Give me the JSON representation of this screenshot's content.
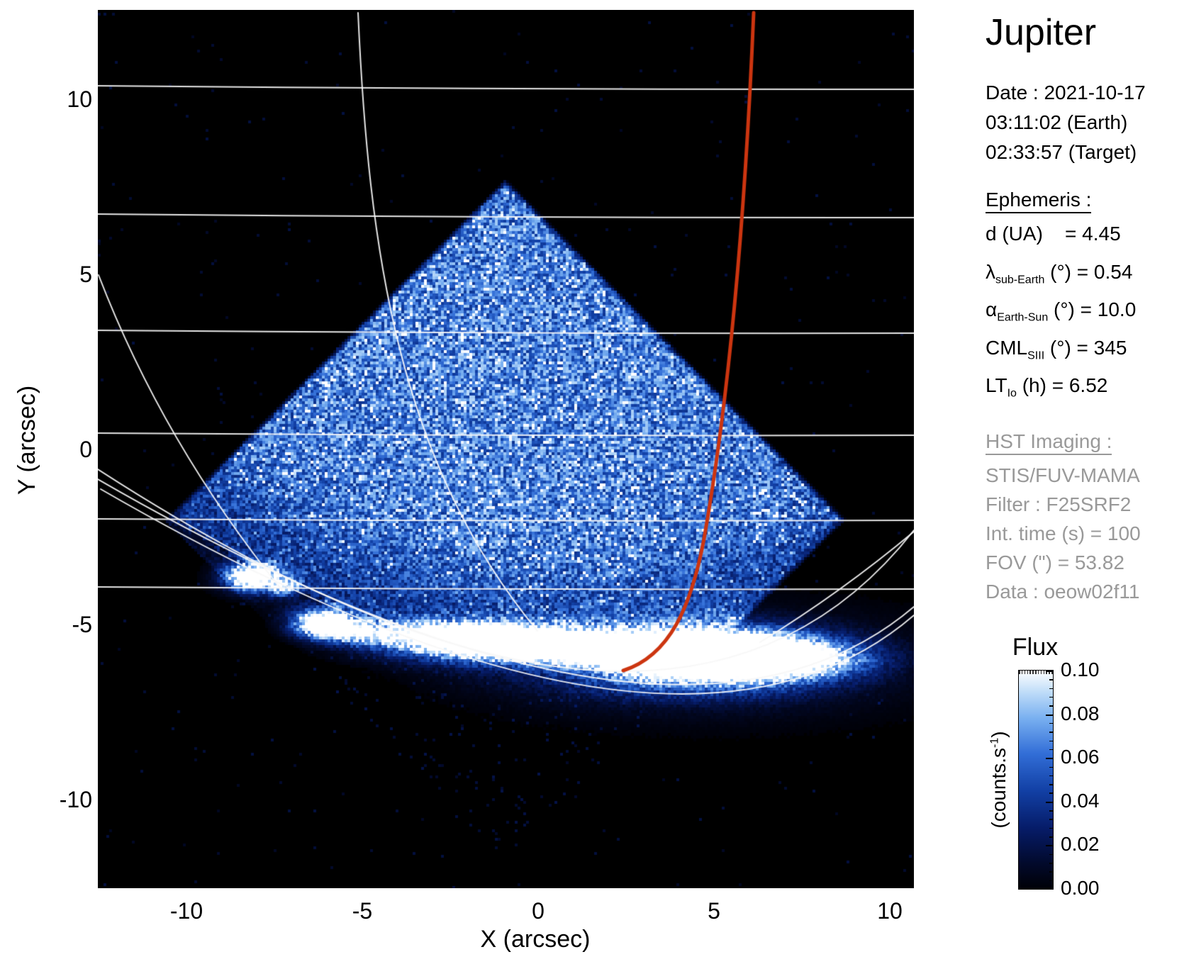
{
  "panel": {
    "title": "Jupiter",
    "date_lines": [
      "Date : 2021-10-17",
      "03:11:02 (Earth)",
      "02:33:57 (Target)"
    ],
    "ephemeris": {
      "heading": "Ephemeris : ",
      "rows": [
        {
          "pre": "d (UA)",
          "sub": "",
          "post": "    = 4.45"
        },
        {
          "pre": "λ",
          "sub": "sub-Earth",
          "post": " (°) = 0.54"
        },
        {
          "pre": "α",
          "sub": "Earth-Sun",
          "post": " (°) = 10.0"
        },
        {
          "pre": "CML",
          "sub": "SIII",
          "post": " (°) = 345"
        },
        {
          "pre": "LT",
          "sub": "Io",
          "post": " (h) = 6.52"
        }
      ]
    },
    "hst": {
      "heading": "HST Imaging : ",
      "lines": [
        "STIS/FUV-MAMA",
        "Filter : F25SRF2",
        "Int. time (s) = 100",
        "FOV (\") = 53.82",
        "Data : oeow02f11"
      ]
    }
  },
  "axes": {
    "xlabel": "X (arcsec)",
    "ylabel": "Y (arcsec)",
    "xticks": [
      "-10",
      "-5",
      "0",
      "5",
      "10"
    ],
    "yticks": [
      "10",
      "5",
      "0",
      "-5",
      "-10"
    ]
  },
  "colorbar": {
    "title": "Flux",
    "unit_pre": "(counts.s",
    "unit_sup": "-1",
    "unit_post": ")",
    "ticks": [
      "0.10",
      "0.08",
      "0.06",
      "0.04",
      "0.02",
      "0.00"
    ],
    "gradient_stops": [
      [
        0,
        "#000006"
      ],
      [
        12,
        "#020a2d"
      ],
      [
        28,
        "#061c69"
      ],
      [
        45,
        "#1240a5"
      ],
      [
        62,
        "#326ed7"
      ],
      [
        78,
        "#78aff0"
      ],
      [
        90,
        "#bedcf8"
      ],
      [
        100,
        "#ffffff"
      ]
    ],
    "track_red": "#cc3510"
  },
  "chart_data": {
    "type": "heatmap",
    "title": "Jupiter",
    "xlabel": "X (arcsec)",
    "ylabel": "Y (arcsec)",
    "xlim": [
      -12.5,
      10.7
    ],
    "ylim": [
      -12.5,
      12.5
    ],
    "xticks": [
      -10,
      -5,
      0,
      5,
      10
    ],
    "yticks": [
      10,
      5,
      0,
      -5,
      -10
    ],
    "grid": false,
    "colorbar": {
      "label": "Flux",
      "unit": "counts.s^-1",
      "range": [
        0.0,
        0.1
      ],
      "ticks": [
        0.1,
        0.08,
        0.06,
        0.04,
        0.02,
        0.0
      ]
    },
    "image_content": {
      "description": "HST/STIS FUV-MAMA image of Jupiter: square detector FOV rotated 45 deg (diamond) filled with noisy blue dayglow from the planetary disk; dark sky below the limb; bright white auroral emission spots strung along the limb; planetocentric latitude/longitude grid overlaid in white; red Io magnetic footprint track.",
      "detector_diamond_arcsec": {
        "top": [
          -1.0,
          7.8
        ],
        "left": [
          -10.7,
          -2.0
        ],
        "right": [
          8.7,
          -2.0
        ],
        "bottom": [
          -1.0,
          -9.7
        ]
      },
      "latitude_lines_y_arcsec": [
        10.35,
        6.7,
        3.38,
        0.45,
        -2.0,
        -3.95
      ],
      "limb_lowest_point_arcsec": [
        1.6,
        -6.3
      ],
      "aurora_spots_arcsec": [
        [
          -8.2,
          -3.6
        ],
        [
          -6.1,
          -4.9
        ],
        [
          -1.4,
          -5.5
        ],
        [
          0.8,
          -5.8
        ],
        [
          2.9,
          -5.7
        ],
        [
          4.9,
          -5.9
        ]
      ],
      "io_track": {
        "color": "#cc3510",
        "from_arcsec": [
          6.1,
          12.4
        ],
        "to_arcsec": [
          2.4,
          -6.3
        ]
      },
      "ephemeris_values": {
        "d_UA": 4.45,
        "lambda_subEarth_deg": 0.54,
        "alpha_EarthSun_deg": 10.0,
        "CML_SIII_deg": 345,
        "LT_Io_h": 6.52
      },
      "imaging": {
        "instrument": "STIS/FUV-MAMA",
        "filter": "F25SRF2",
        "int_time_s": 100,
        "fov_arcsec": 53.82,
        "data_id": "oeow02f11"
      }
    }
  }
}
